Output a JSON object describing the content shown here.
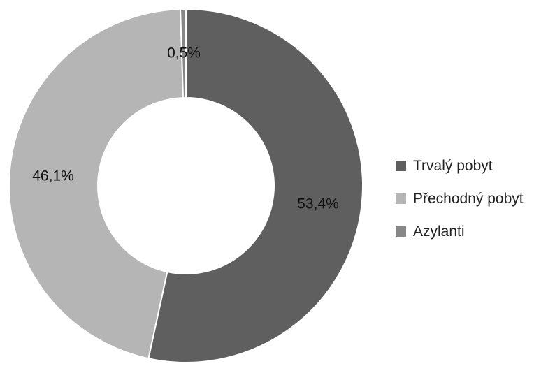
{
  "chart_data": {
    "type": "pie",
    "variant": "donut",
    "title": "",
    "series": [
      {
        "name": "Trvalý pobyt",
        "value": 53.4,
        "label": "53,4%",
        "color": "#5f5f5f"
      },
      {
        "name": "Přechodný pobyt",
        "value": 46.1,
        "label": "46,1%",
        "color": "#b5b5b5"
      },
      {
        "name": "Azylanti",
        "value": 0.5,
        "label": "0,5%",
        "color": "#878787"
      }
    ],
    "legend": {
      "position": "right",
      "items": [
        {
          "label": "Trvalý pobyt",
          "color": "#5f5f5f"
        },
        {
          "label": "Přechodný pobyt",
          "color": "#b5b5b5"
        },
        {
          "label": "Azylanti",
          "color": "#878787"
        }
      ]
    }
  }
}
